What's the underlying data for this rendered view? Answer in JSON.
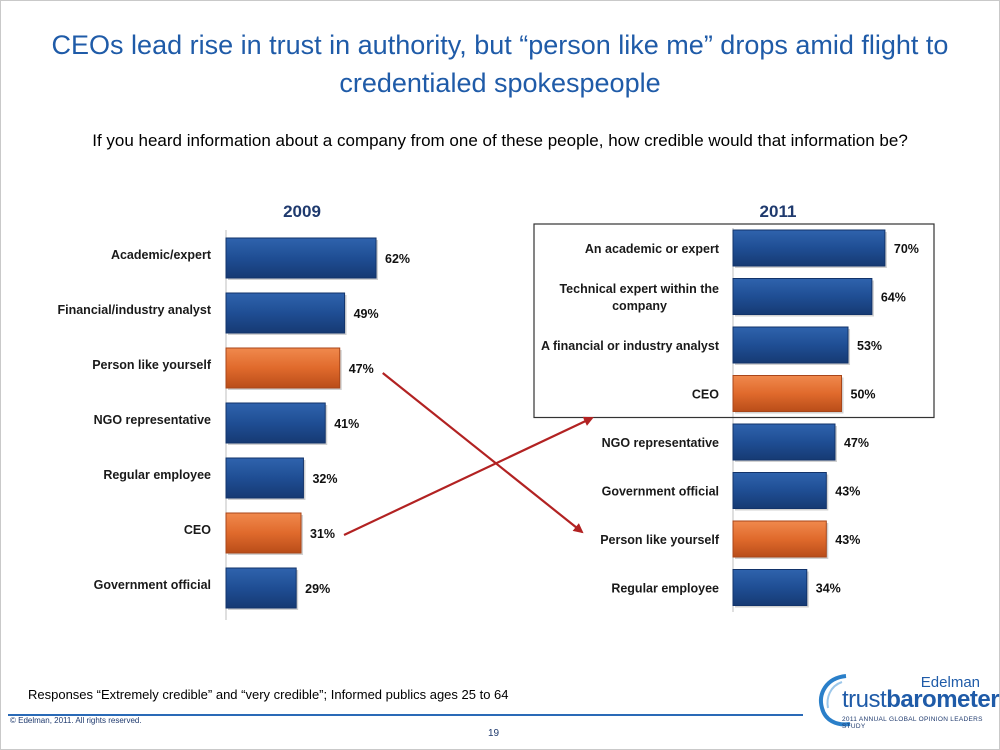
{
  "slide": {
    "title": "CEOs lead rise in trust in authority, but “person like me” drops amid flight to credentialed spokespeople",
    "question": "If you heard information about a company from one of these people, how credible would that information be?",
    "footnote": "Responses “Extremely credible” and “very credible”; Informed publics ages 25 to 64",
    "copyright": "© Edelman, 2011. All rights reserved.",
    "page_number": "19"
  },
  "logo": {
    "brand": "Edelman",
    "product_light": "trust",
    "product_bold": "barometer",
    "tagline": "2011 ANNUAL GLOBAL OPINION LEADERS STUDY"
  },
  "colors": {
    "title": "#1f5ba8",
    "bar_blue": "#1f4e94",
    "bar_orange": "#e06a2c",
    "arrow": "#b22222"
  },
  "chart_data": [
    {
      "type": "bar",
      "orientation": "horizontal",
      "title": "2009",
      "categories": [
        "Academic/expert",
        "Financial/industry analyst",
        "Person like yourself",
        "NGO representative",
        "Regular employee",
        "CEO",
        "Government official"
      ],
      "values": [
        62,
        49,
        47,
        41,
        32,
        31,
        29
      ],
      "value_labels": [
        "62%",
        "49%",
        "47%",
        "41%",
        "32%",
        "31%",
        "29%"
      ],
      "highlight": [
        false,
        false,
        true,
        false,
        false,
        true,
        false
      ]
    },
    {
      "type": "bar",
      "orientation": "horizontal",
      "title": "2011",
      "categories": [
        "An academic or expert",
        "Technical expert within the company",
        "A financial or industry analyst",
        "CEO",
        "NGO representative",
        "Government official",
        "Person like yourself",
        "Regular employee"
      ],
      "category_lines": [
        [
          "An academic or expert"
        ],
        [
          "Technical expert within the",
          "company"
        ],
        [
          "A financial or industry analyst"
        ],
        [
          "CEO"
        ],
        [
          "NGO representative"
        ],
        [
          "Government official"
        ],
        [
          "Person like yourself"
        ],
        [
          "Regular employee"
        ]
      ],
      "values": [
        70,
        64,
        53,
        50,
        47,
        43,
        43,
        34
      ],
      "value_labels": [
        "70%",
        "64%",
        "53%",
        "50%",
        "47%",
        "43%",
        "43%",
        "34%"
      ],
      "highlight": [
        false,
        false,
        false,
        true,
        false,
        false,
        true,
        false
      ],
      "boxed_top_n": 4
    }
  ],
  "annotations": {
    "arrows": [
      {
        "from": "2009: Person like yourself",
        "to": "2011: Person like yourself"
      },
      {
        "from": "2009: CEO",
        "to": "2011: CEO"
      }
    ]
  }
}
